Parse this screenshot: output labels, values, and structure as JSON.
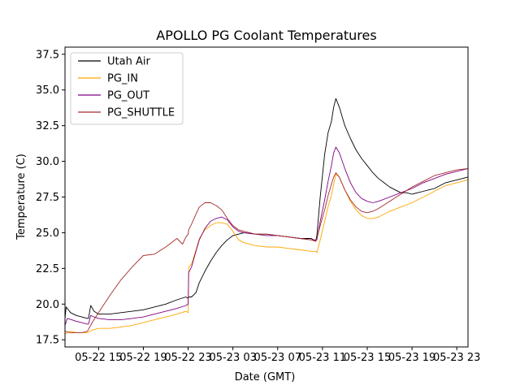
{
  "chart_data": {
    "type": "line",
    "title": "APOLLO PG Coolant Temperatures",
    "xlabel": "Date (GMT)",
    "ylabel": "Temperature (C)",
    "x_unit": "hours since 05-22 12:00 GMT",
    "xlim": [
      0,
      36
    ],
    "ylim": [
      17.0,
      38.0
    ],
    "grid": false,
    "legend_position": "top-left",
    "xticks": [
      {
        "value": 3,
        "label": "05-22 15"
      },
      {
        "value": 7,
        "label": "05-22 19"
      },
      {
        "value": 11,
        "label": "05-22 23"
      },
      {
        "value": 15,
        "label": "05-23 03"
      },
      {
        "value": 19,
        "label": "05-23 07"
      },
      {
        "value": 23,
        "label": "05-23 11"
      },
      {
        "value": 27,
        "label": "05-23 15"
      },
      {
        "value": 31,
        "label": "05-23 19"
      },
      {
        "value": 35,
        "label": "05-23 23"
      }
    ],
    "yticks": [
      {
        "value": 17.5,
        "label": "17.5"
      },
      {
        "value": 20.0,
        "label": "20.0"
      },
      {
        "value": 22.5,
        "label": "22.5"
      },
      {
        "value": 25.0,
        "label": "25.0"
      },
      {
        "value": 27.5,
        "label": "27.5"
      },
      {
        "value": 30.0,
        "label": "30.0"
      },
      {
        "value": 32.5,
        "label": "32.5"
      },
      {
        "value": 35.0,
        "label": "35.0"
      },
      {
        "value": 37.5,
        "label": "37.5"
      }
    ],
    "series": [
      {
        "name": "Utah Air",
        "color": "#000000",
        "x": [
          0.0,
          0.1,
          0.5,
          1.0,
          1.5,
          2.0,
          2.1,
          2.3,
          2.6,
          3.0,
          4.0,
          5.0,
          6.0,
          7.0,
          8.0,
          9.0,
          10.0,
          10.8,
          11.0,
          11.05,
          11.3,
          11.7,
          12.0,
          12.5,
          13.0,
          13.5,
          14.0,
          14.5,
          15.0,
          16.0,
          17.0,
          18.0,
          19.0,
          20.0,
          21.0,
          22.0,
          22.4,
          22.5,
          22.8,
          23.2,
          23.5,
          23.8,
          24.0,
          24.2,
          24.5,
          25.0,
          25.5,
          26.0,
          26.5,
          27.0,
          27.5,
          28.0,
          28.5,
          29.0,
          29.5,
          30.0,
          30.5,
          31.0,
          31.5,
          32.0,
          32.5,
          33.0,
          33.5,
          34.0,
          34.5,
          35.0,
          35.5,
          36.0
        ],
        "values": [
          19.0,
          19.8,
          19.4,
          19.2,
          19.1,
          19.0,
          19.0,
          19.9,
          19.5,
          19.3,
          19.3,
          19.4,
          19.5,
          19.6,
          19.8,
          20.0,
          20.3,
          20.5,
          20.4,
          20.5,
          20.5,
          20.8,
          21.5,
          22.3,
          23.0,
          23.6,
          24.1,
          24.5,
          24.8,
          25.0,
          24.9,
          24.9,
          24.8,
          24.7,
          24.6,
          24.6,
          24.4,
          24.8,
          27.5,
          30.5,
          32.0,
          32.8,
          33.8,
          34.4,
          33.8,
          32.5,
          31.6,
          30.8,
          30.2,
          29.7,
          29.2,
          28.8,
          28.5,
          28.2,
          28.0,
          27.8,
          27.8,
          27.7,
          27.8,
          27.9,
          28.0,
          28.1,
          28.3,
          28.5,
          28.6,
          28.7,
          28.8,
          28.9
        ]
      },
      {
        "name": "PG_IN",
        "color": "#FFA500",
        "x": [
          0.0,
          0.5,
          1.0,
          1.5,
          2.0,
          2.5,
          3.0,
          3.5,
          4.0,
          5.0,
          6.0,
          7.0,
          8.0,
          9.0,
          10.0,
          10.8,
          11.0,
          11.05,
          11.3,
          11.7,
          12.0,
          12.5,
          13.0,
          13.5,
          14.0,
          14.5,
          15.0,
          15.5,
          16.0,
          17.0,
          18.0,
          19.0,
          20.0,
          21.0,
          22.0,
          22.4,
          22.5,
          22.8,
          23.2,
          23.5,
          23.8,
          24.0,
          24.2,
          24.5,
          25.0,
          25.5,
          26.0,
          26.5,
          27.0,
          27.5,
          28.0,
          29.0,
          30.0,
          31.0,
          32.0,
          33.0,
          34.0,
          35.0,
          36.0
        ],
        "values": [
          17.9,
          18.1,
          18.0,
          18.0,
          18.0,
          18.2,
          18.3,
          18.3,
          18.3,
          18.4,
          18.5,
          18.7,
          18.9,
          19.1,
          19.3,
          19.5,
          19.4,
          22.6,
          22.8,
          23.8,
          24.6,
          25.2,
          25.5,
          25.7,
          25.7,
          25.6,
          25.1,
          24.5,
          24.3,
          24.1,
          24.0,
          24.0,
          23.9,
          23.8,
          23.7,
          23.7,
          23.6,
          24.5,
          25.8,
          26.8,
          27.6,
          28.4,
          29.1,
          28.9,
          28.0,
          27.2,
          26.6,
          26.2,
          26.0,
          26.0,
          26.1,
          26.5,
          26.8,
          27.1,
          27.5,
          27.9,
          28.3,
          28.5,
          28.7
        ]
      },
      {
        "name": "PG_OUT",
        "color": "#800080",
        "x": [
          0.0,
          0.2,
          0.6,
          1.0,
          1.5,
          2.0,
          2.1,
          2.3,
          2.6,
          3.0,
          4.0,
          5.0,
          6.0,
          7.0,
          8.0,
          9.0,
          10.0,
          10.8,
          11.0,
          11.05,
          11.3,
          11.7,
          12.0,
          12.5,
          13.0,
          13.5,
          14.0,
          14.5,
          15.0,
          15.5,
          16.0,
          17.0,
          18.0,
          19.0,
          20.0,
          21.0,
          22.0,
          22.4,
          22.5,
          22.8,
          23.2,
          23.5,
          23.8,
          24.0,
          24.2,
          24.5,
          25.0,
          25.5,
          26.0,
          26.5,
          27.0,
          27.5,
          28.0,
          29.0,
          30.0,
          31.0,
          32.0,
          33.0,
          34.0,
          35.0,
          36.0
        ],
        "values": [
          18.5,
          19.0,
          18.9,
          18.8,
          18.7,
          18.6,
          18.6,
          19.2,
          19.1,
          19.0,
          18.9,
          18.9,
          19.0,
          19.1,
          19.3,
          19.5,
          19.7,
          19.9,
          20.0,
          22.2,
          22.6,
          23.7,
          24.5,
          25.3,
          25.8,
          26.0,
          26.1,
          25.9,
          25.4,
          25.1,
          25.0,
          24.9,
          24.8,
          24.8,
          24.7,
          24.6,
          24.5,
          24.5,
          24.5,
          25.8,
          27.3,
          28.6,
          29.7,
          30.6,
          31.0,
          30.6,
          29.5,
          28.5,
          27.8,
          27.4,
          27.2,
          27.1,
          27.2,
          27.5,
          27.8,
          28.1,
          28.5,
          28.8,
          29.1,
          29.3,
          29.5
        ]
      },
      {
        "name": "PG_SHUTTLE",
        "color": "#A52A2A",
        "x": [
          0.0,
          0.5,
          1.0,
          1.5,
          2.0,
          2.5,
          3.0,
          3.5,
          4.0,
          5.0,
          6.0,
          7.0,
          8.0,
          9.0,
          10.0,
          10.5,
          10.8,
          11.0,
          11.05,
          11.3,
          11.7,
          12.0,
          12.5,
          13.0,
          13.5,
          14.0,
          14.5,
          15.0,
          15.5,
          16.0,
          17.0,
          18.0,
          19.0,
          20.0,
          21.0,
          22.0,
          22.4,
          22.5,
          22.8,
          23.2,
          23.5,
          23.8,
          24.0,
          24.2,
          24.5,
          25.0,
          25.5,
          26.0,
          26.5,
          27.0,
          27.5,
          28.0,
          29.0,
          30.0,
          31.0,
          32.0,
          33.0,
          34.0,
          35.0,
          36.0
        ],
        "values": [
          18.1,
          18.0,
          18.0,
          18.0,
          18.1,
          18.8,
          19.4,
          20.0,
          20.6,
          21.7,
          22.6,
          23.4,
          23.5,
          24.0,
          24.6,
          24.2,
          24.7,
          24.9,
          25.2,
          25.6,
          26.3,
          26.8,
          27.1,
          27.1,
          26.9,
          26.6,
          26.0,
          25.5,
          25.2,
          25.1,
          24.9,
          24.9,
          24.8,
          24.7,
          24.6,
          24.5,
          24.4,
          24.6,
          25.5,
          26.6,
          27.6,
          28.4,
          28.9,
          29.2,
          28.9,
          28.0,
          27.3,
          26.8,
          26.5,
          26.4,
          26.5,
          26.7,
          27.2,
          27.7,
          28.2,
          28.6,
          29.0,
          29.2,
          29.4,
          29.5
        ]
      }
    ]
  }
}
